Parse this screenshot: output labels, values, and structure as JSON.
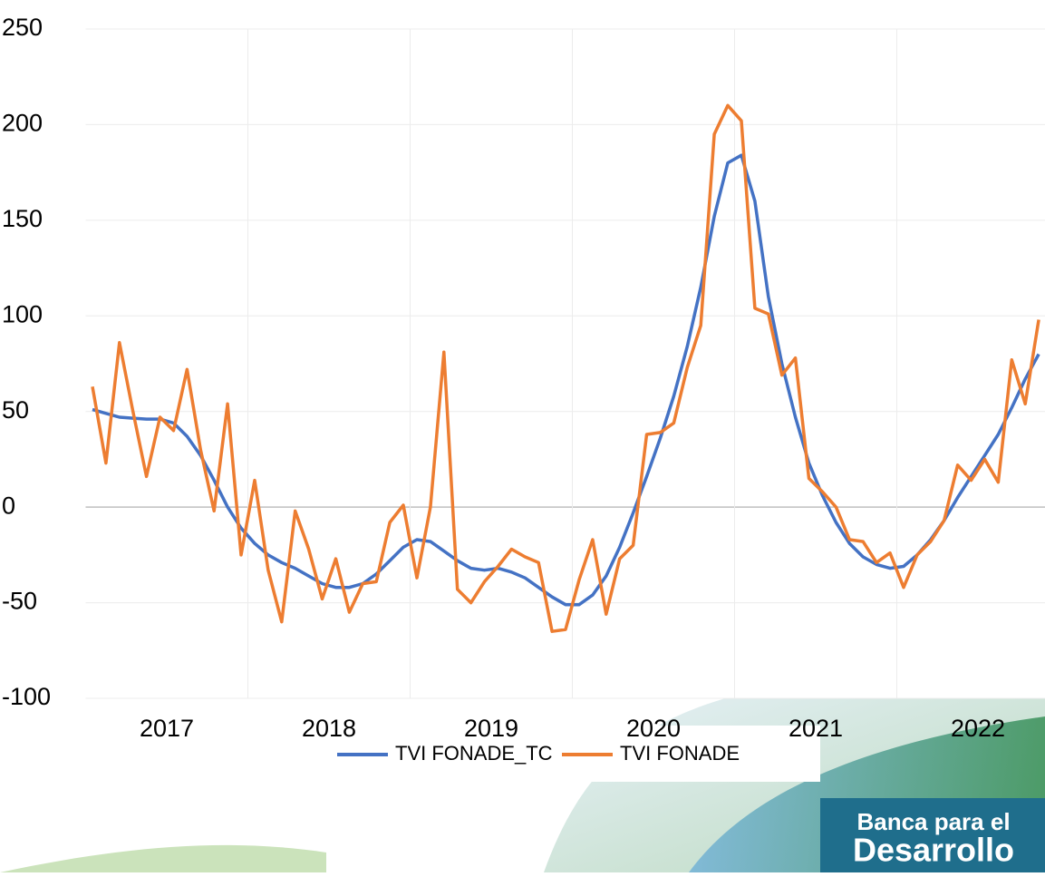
{
  "chart_data": {
    "type": "line",
    "year_labels": [
      "2017",
      "2018",
      "2019",
      "2020",
      "2021",
      "2022"
    ],
    "points_per_year": 12,
    "series": [
      {
        "name": "TVI FONADE_TC",
        "color": "#4472c4",
        "values": [
          51,
          49,
          47,
          46.5,
          46,
          46,
          44,
          37,
          27,
          14,
          0,
          -11,
          -19,
          -25,
          -29,
          -32,
          -36,
          -40,
          -42,
          -42,
          -40,
          -35,
          -28,
          -21,
          -17,
          -18,
          -23,
          -28,
          -32,
          -33,
          -32,
          -34,
          -37,
          -42,
          -47,
          -51,
          -51,
          -46,
          -36,
          -21,
          -3,
          16,
          36,
          58,
          84,
          115,
          152,
          180,
          184,
          160,
          110,
          75,
          47,
          23,
          6,
          -8,
          -19,
          -26,
          -30,
          -32,
          -31,
          -25,
          -17,
          -7,
          5,
          16,
          27,
          38,
          52,
          67,
          80
        ]
      },
      {
        "name": "TVI FONADE",
        "color": "#ed7d31",
        "values": [
          63,
          23,
          86,
          50,
          16,
          47,
          40,
          72,
          30,
          -2,
          54,
          -25,
          14,
          -33,
          -60,
          -2,
          -22,
          -48,
          -27,
          -55,
          -40,
          -39,
          -8,
          1,
          -37,
          0,
          81,
          -43,
          -50,
          -39,
          -31,
          -22,
          -26,
          -29,
          -65,
          -64,
          -38,
          -17,
          -56,
          -27,
          -20,
          38,
          39,
          44,
          73,
          95,
          195,
          210,
          202,
          104,
          101,
          69,
          78,
          15,
          8,
          0,
          -17,
          -18,
          -29,
          -24,
          -42,
          -25,
          -18,
          -7,
          22,
          14,
          25,
          13,
          77,
          54,
          98
        ]
      }
    ],
    "ylim": [
      -100,
      250
    ],
    "yticks": [
      -100,
      -50,
      0,
      50,
      100,
      150,
      200,
      250
    ],
    "grid": true,
    "legend": "bottom"
  },
  "branding": {
    "line1": "Banca para el",
    "line2": "Desarrollo"
  }
}
